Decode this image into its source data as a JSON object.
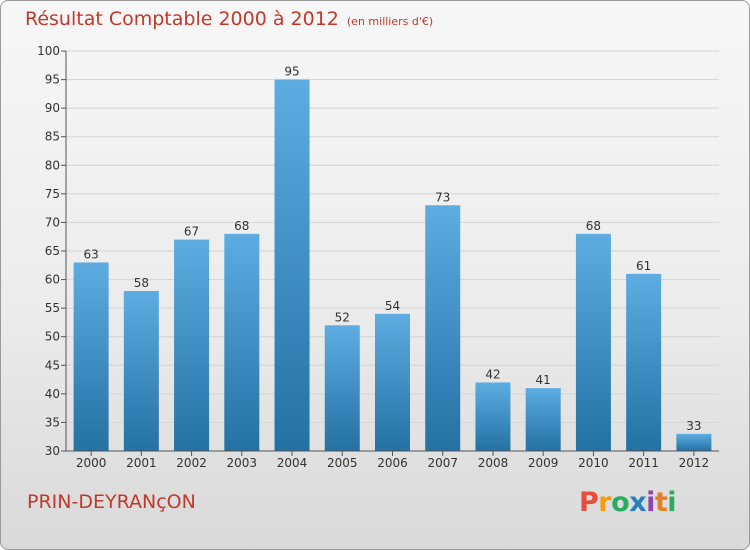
{
  "chart_data": {
    "type": "bar",
    "title": "Résultat Comptable 2000 à 2012",
    "subtitle": "(en milliers d'€)",
    "xlabel": "",
    "ylabel": "",
    "categories": [
      "2000",
      "2001",
      "2002",
      "2003",
      "2004",
      "2005",
      "2006",
      "2007",
      "2008",
      "2009",
      "2010",
      "2011",
      "2012"
    ],
    "values": [
      63,
      58,
      67,
      68,
      95,
      52,
      54,
      73,
      42,
      41,
      68,
      61,
      33
    ],
    "ylim": [
      30,
      100
    ],
    "yticks": [
      30,
      35,
      40,
      45,
      50,
      55,
      60,
      65,
      70,
      75,
      80,
      85,
      90,
      95,
      100
    ],
    "grid": true,
    "legend": "none"
  },
  "commune": "PRIN-DEYRANçON",
  "logo": {
    "letters": [
      {
        "ch": "P",
        "color": "#e74c3c"
      },
      {
        "ch": "r",
        "color": "#f39c12"
      },
      {
        "ch": "o",
        "color": "#27ae60"
      },
      {
        "ch": "x",
        "color": "#2980b9"
      },
      {
        "ch": "i",
        "color": "#8e44ad"
      },
      {
        "ch": "t",
        "color": "#e67e22"
      },
      {
        "ch": "i",
        "color": "#27ae60"
      }
    ]
  },
  "colors": {
    "bar_light": "#5dade2",
    "bar_dark": "#2471a3",
    "title": "#c0392b",
    "grid": "#d4d4d4",
    "axis": "#555555"
  }
}
